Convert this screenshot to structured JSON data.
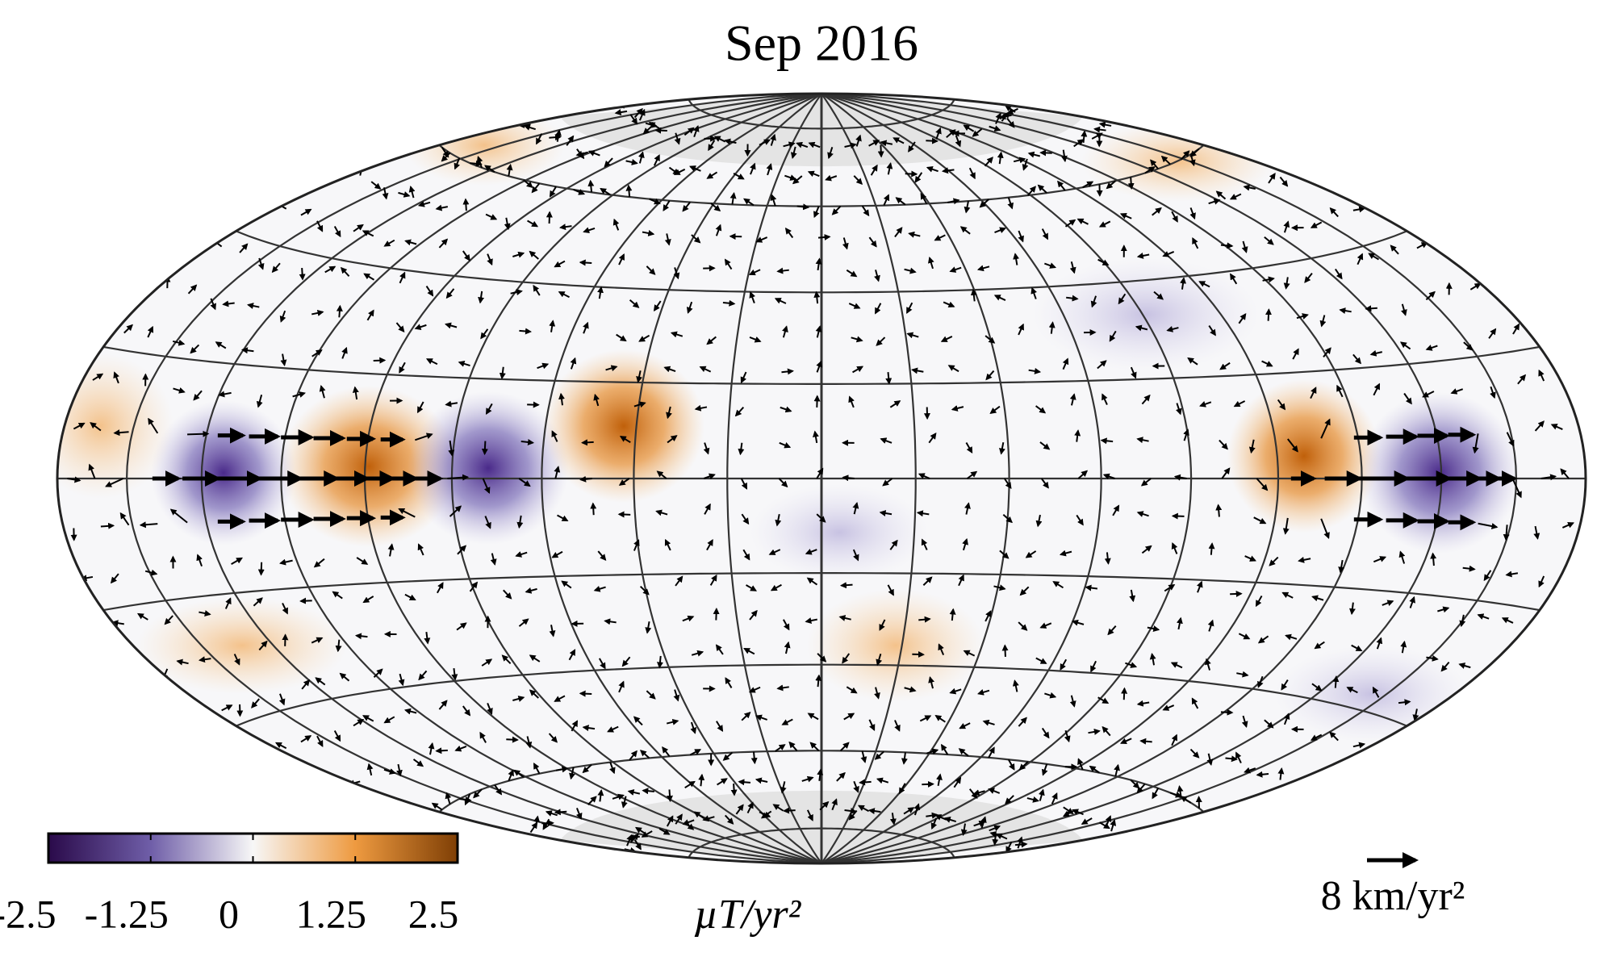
{
  "title": "Sep 2016",
  "colorbar": {
    "lim": [
      -2.5,
      2.5
    ],
    "ticks": [
      -2.5,
      -1.25,
      0,
      1.25,
      2.5
    ],
    "unit": "µT/yr²"
  },
  "scale_arrow": {
    "label": "8 km/yr²"
  }
}
